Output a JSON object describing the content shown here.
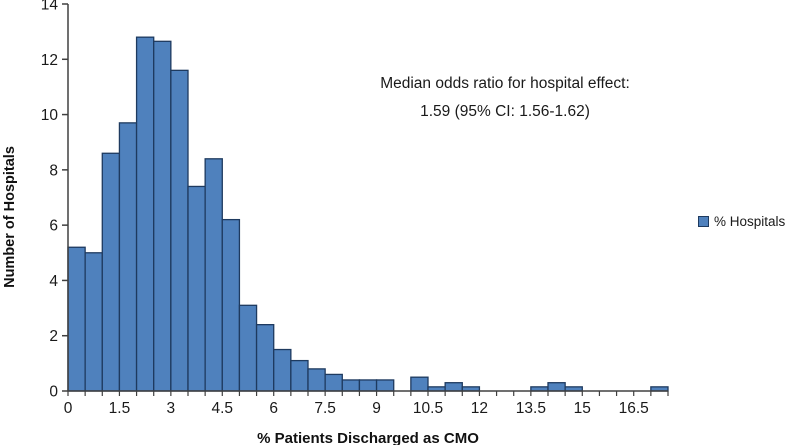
{
  "chart_data": {
    "type": "bar",
    "title": "",
    "xlabel": "% Patients Discharged as CMO",
    "ylabel": "Number of Hospitals",
    "categories": [
      0,
      0.5,
      1,
      1.5,
      2,
      2.5,
      3,
      3.5,
      4,
      4.5,
      5,
      5.5,
      6,
      6.5,
      7,
      7.5,
      8,
      8.5,
      9,
      9.5,
      10,
      10.5,
      11,
      11.5,
      12,
      12.5,
      13,
      13.5,
      14,
      14.5,
      15,
      15.5,
      16,
      16.5,
      17
    ],
    "values": [
      5.2,
      5.0,
      8.6,
      9.7,
      12.8,
      12.65,
      11.6,
      7.4,
      8.4,
      6.2,
      3.1,
      2.4,
      1.5,
      1.1,
      0.8,
      0.6,
      0.4,
      0.4,
      0.4,
      0,
      0.5,
      0.15,
      0.3,
      0.15,
      0,
      0,
      0,
      0.15,
      0.3,
      0.15,
      0,
      0,
      0,
      0,
      0.15
    ],
    "bar_width_units": 0.5,
    "x_tick_labels": [
      "0",
      "1.5",
      "3",
      "4.5",
      "6",
      "7.5",
      "9",
      "10.5",
      "12",
      "13.5",
      "15",
      "16.5"
    ],
    "x_label_step": 3,
    "y_ticks": [
      0,
      2,
      4,
      6,
      8,
      10,
      12,
      14
    ],
    "ylim": [
      0,
      14
    ],
    "grid": false,
    "legend": {
      "label": "% Hospitals",
      "position": "right"
    },
    "annotation": {
      "line1": "Median odds ratio for hospital effect:",
      "line2": "1.59 (95% CI: 1.56-1.62)"
    },
    "colors": {
      "bar_fill": "#4F81BD",
      "bar_border": "#1E3A5F",
      "axis": "#404040",
      "text": "#1A1A1A"
    }
  }
}
